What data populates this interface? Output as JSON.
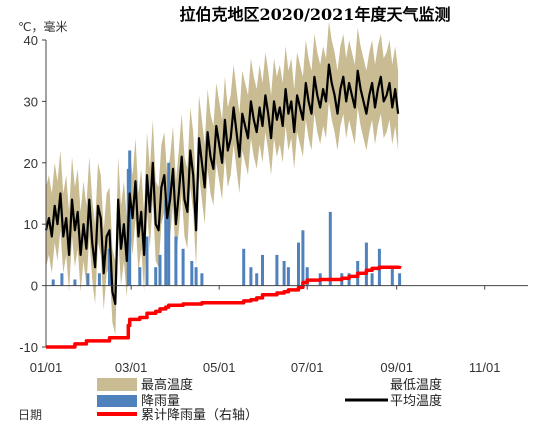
{
  "chart_data": {
    "type": "line",
    "title": "拉伯克地区2020/2021年度天气监测",
    "y_unit_label": "℃，毫米",
    "xlabel": "日期",
    "ylim": [
      -10,
      40
    ],
    "y_ticks": [
      "-10",
      "0",
      "10",
      "20",
      "30",
      "40"
    ],
    "x_ticks": [
      "01/01",
      "03/01",
      "05/01",
      "07/01",
      "09/01",
      "11/01"
    ],
    "x_tick_days": [
      0,
      59,
      120,
      181,
      243,
      304
    ],
    "x_range_days": [
      0,
      334
    ],
    "grid": false,
    "colors": {
      "band": "#c9bc93",
      "avg": "#000000",
      "precip": "#4f81bd",
      "cumulative": "#ff0000"
    },
    "legend": {
      "max_temp": "最高温度",
      "min_temp": "最低温度",
      "precip": "降雨量",
      "avg_temp": "平均温度",
      "cumulative": "累计降雨量（右轴）"
    },
    "series": [
      {
        "name": "平均温度",
        "x_day": [
          0,
          2,
          4,
          6,
          8,
          10,
          12,
          14,
          16,
          18,
          20,
          22,
          24,
          26,
          28,
          30,
          32,
          34,
          36,
          38,
          40,
          42,
          44,
          46,
          48,
          50,
          52,
          54,
          56,
          58,
          60,
          62,
          64,
          66,
          68,
          70,
          72,
          74,
          76,
          78,
          80,
          82,
          84,
          86,
          88,
          90,
          92,
          94,
          96,
          98,
          100,
          102,
          104,
          106,
          108,
          110,
          112,
          114,
          116,
          118,
          120,
          122,
          124,
          126,
          128,
          130,
          132,
          134,
          136,
          138,
          140,
          142,
          144,
          146,
          148,
          150,
          152,
          154,
          156,
          158,
          160,
          162,
          164,
          166,
          168,
          170,
          172,
          174,
          176,
          178,
          180,
          182,
          184,
          186,
          188,
          190,
          192,
          194,
          196,
          198,
          200,
          202,
          204,
          206,
          208,
          210,
          212,
          214,
          216,
          218,
          220,
          222,
          224,
          226,
          228,
          230,
          232,
          234,
          236,
          238,
          240,
          242,
          244
        ],
        "values": [
          9,
          11,
          8,
          13,
          10,
          15,
          8,
          11,
          5,
          14,
          9,
          12,
          5,
          10,
          6,
          14,
          7,
          3,
          13,
          11,
          2,
          8,
          9,
          -1,
          -3,
          14,
          6,
          10,
          4,
          15,
          11,
          17,
          8,
          12,
          5,
          18,
          12,
          20,
          10,
          9,
          16,
          18,
          11,
          14,
          19,
          10,
          15,
          21,
          14,
          12,
          22,
          18,
          9,
          24,
          20,
          16,
          25,
          21,
          19,
          26,
          23,
          20,
          27,
          22,
          24,
          29,
          25,
          21,
          28,
          26,
          24,
          30,
          27,
          25,
          29,
          26,
          31,
          28,
          24,
          30,
          27,
          29,
          26,
          32,
          28,
          30,
          25,
          31,
          29,
          27,
          33,
          30,
          28,
          34,
          31,
          29,
          32,
          30,
          36,
          33,
          31,
          28,
          32,
          34,
          30,
          33,
          31,
          29,
          35,
          32,
          30,
          28,
          31,
          33,
          29,
          32,
          34,
          30,
          31,
          33,
          29,
          32,
          28
        ]
      },
      {
        "name": "最高温度",
        "x_day": [
          0,
          2,
          4,
          6,
          8,
          10,
          12,
          14,
          16,
          18,
          20,
          22,
          24,
          26,
          28,
          30,
          32,
          34,
          36,
          38,
          40,
          42,
          44,
          46,
          48,
          50,
          52,
          54,
          56,
          58,
          60,
          62,
          64,
          66,
          68,
          70,
          72,
          74,
          76,
          78,
          80,
          82,
          84,
          86,
          88,
          90,
          92,
          94,
          96,
          98,
          100,
          102,
          104,
          106,
          108,
          110,
          112,
          114,
          116,
          118,
          120,
          122,
          124,
          126,
          128,
          130,
          132,
          134,
          136,
          138,
          140,
          142,
          144,
          146,
          148,
          150,
          152,
          154,
          156,
          158,
          160,
          162,
          164,
          166,
          168,
          170,
          172,
          174,
          176,
          178,
          180,
          182,
          184,
          186,
          188,
          190,
          192,
          194,
          196,
          198,
          200,
          202,
          204,
          206,
          208,
          210,
          212,
          214,
          216,
          218,
          220,
          222,
          224,
          226,
          228,
          230,
          232,
          234,
          236,
          238,
          240,
          242,
          244
        ],
        "values": [
          16,
          18,
          15,
          20,
          17,
          22,
          15,
          18,
          12,
          21,
          16,
          19,
          12,
          17,
          13,
          21,
          14,
          10,
          20,
          18,
          9,
          15,
          16,
          6,
          4,
          21,
          13,
          17,
          11,
          22,
          18,
          24,
          15,
          19,
          12,
          25,
          19,
          27,
          17,
          16,
          23,
          25,
          18,
          21,
          26,
          17,
          22,
          28,
          21,
          19,
          29,
          25,
          16,
          31,
          27,
          23,
          32,
          28,
          26,
          33,
          30,
          27,
          34,
          29,
          31,
          36,
          32,
          28,
          35,
          33,
          31,
          37,
          34,
          32,
          36,
          33,
          38,
          35,
          31,
          37,
          34,
          36,
          33,
          39,
          35,
          37,
          32,
          38,
          36,
          34,
          40,
          37,
          35,
          41,
          38,
          36,
          39,
          37,
          43,
          40,
          38,
          35,
          39,
          41,
          37,
          40,
          38,
          36,
          42,
          39,
          37,
          35,
          38,
          40,
          36,
          39,
          41,
          37,
          38,
          40,
          36,
          39,
          35
        ]
      },
      {
        "name": "最低温度",
        "x_day": [
          0,
          2,
          4,
          6,
          8,
          10,
          12,
          14,
          16,
          18,
          20,
          22,
          24,
          26,
          28,
          30,
          32,
          34,
          36,
          38,
          40,
          42,
          44,
          46,
          48,
          50,
          52,
          54,
          56,
          58,
          60,
          62,
          64,
          66,
          68,
          70,
          72,
          74,
          76,
          78,
          80,
          82,
          84,
          86,
          88,
          90,
          92,
          94,
          96,
          98,
          100,
          102,
          104,
          106,
          108,
          110,
          112,
          114,
          116,
          118,
          120,
          122,
          124,
          126,
          128,
          130,
          132,
          134,
          136,
          138,
          140,
          142,
          144,
          146,
          148,
          150,
          152,
          154,
          156,
          158,
          160,
          162,
          164,
          166,
          168,
          170,
          172,
          174,
          176,
          178,
          180,
          182,
          184,
          186,
          188,
          190,
          192,
          194,
          196,
          198,
          200,
          202,
          204,
          206,
          208,
          210,
          212,
          214,
          216,
          218,
          220,
          222,
          224,
          226,
          228,
          230,
          232,
          234,
          236,
          238,
          240,
          242,
          244
        ],
        "values": [
          3,
          5,
          2,
          7,
          4,
          9,
          2,
          5,
          -1,
          8,
          3,
          6,
          -1,
          4,
          0,
          8,
          1,
          -3,
          7,
          5,
          -4,
          2,
          3,
          -6,
          -8,
          8,
          0,
          4,
          -2,
          9,
          5,
          11,
          2,
          6,
          -1,
          12,
          6,
          14,
          4,
          3,
          10,
          12,
          5,
          8,
          13,
          4,
          9,
          15,
          8,
          6,
          16,
          12,
          3,
          18,
          14,
          10,
          19,
          15,
          13,
          20,
          17,
          14,
          21,
          16,
          18,
          23,
          19,
          15,
          22,
          20,
          18,
          24,
          21,
          19,
          23,
          20,
          25,
          22,
          18,
          24,
          21,
          23,
          20,
          26,
          22,
          24,
          19,
          25,
          23,
          21,
          27,
          24,
          22,
          28,
          25,
          23,
          26,
          24,
          30,
          27,
          25,
          22,
          26,
          28,
          24,
          27,
          25,
          23,
          29,
          26,
          24,
          22,
          25,
          27,
          23,
          26,
          28,
          24,
          25,
          27,
          23,
          26,
          22
        ]
      },
      {
        "name": "降雨量",
        "x_day": [
          5,
          11,
          20,
          29,
          37,
          44,
          57,
          58,
          65,
          70,
          76,
          79,
          83,
          85,
          90,
          95,
          101,
          104,
          108,
          137,
          142,
          146,
          150,
          160,
          165,
          168,
          175,
          178,
          181,
          190,
          197,
          205,
          210,
          216,
          222,
          226,
          231,
          240,
          245
        ],
        "values": [
          1,
          2,
          1,
          2,
          2,
          6,
          19,
          22,
          3,
          8,
          3,
          5,
          14,
          20,
          8,
          6,
          4,
          3,
          2,
          6,
          3,
          2,
          5,
          5,
          4,
          3,
          7,
          9,
          3,
          2,
          12,
          2,
          2,
          4,
          7,
          2,
          6,
          3,
          2
        ]
      },
      {
        "name": "累计降雨量（右轴）",
        "x_day": [
          0,
          14,
          20,
          25,
          28,
          35,
          44,
          50,
          57,
          58,
          65,
          70,
          76,
          79,
          83,
          85,
          90,
          95,
          101,
          108,
          137,
          142,
          146,
          150,
          160,
          165,
          168,
          175,
          178,
          181,
          190,
          197,
          205,
          210,
          216,
          222,
          226,
          231,
          240,
          245
        ],
        "values": [
          -10,
          -10,
          -9.5,
          -9.5,
          -9,
          -9,
          -8.5,
          -8.5,
          -6.5,
          -5.5,
          -5.2,
          -4.5,
          -4.2,
          -3.8,
          -3.5,
          -3.2,
          -3.2,
          -3,
          -3,
          -2.8,
          -2.5,
          -2.3,
          -2,
          -1.5,
          -1.2,
          -1,
          -0.7,
          -0.3,
          0.5,
          0.9,
          1,
          1,
          1.2,
          1.5,
          2,
          2.5,
          2.8,
          3,
          3,
          3.2
        ]
      }
    ]
  }
}
